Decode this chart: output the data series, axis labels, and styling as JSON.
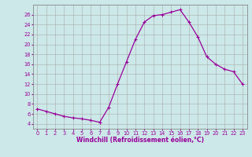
{
  "x": [
    0,
    1,
    2,
    3,
    4,
    5,
    6,
    7,
    8,
    9,
    10,
    11,
    12,
    13,
    14,
    15,
    16,
    17,
    18,
    19,
    20,
    21,
    22,
    23
  ],
  "y": [
    7,
    6.5,
    6,
    5.5,
    5.2,
    5,
    4.7,
    4.3,
    7.3,
    12,
    16.5,
    21,
    24.5,
    25.8,
    26,
    26.5,
    27,
    24.5,
    21.5,
    17.5,
    16,
    15,
    14.5,
    12
  ],
  "line_color": "#990099",
  "marker": "+",
  "bg_color": "#cce8e8",
  "grid_color": "#aaaaaa",
  "xlim": [
    -0.5,
    23.5
  ],
  "ylim": [
    3,
    28
  ],
  "yticks": [
    4,
    6,
    8,
    10,
    12,
    14,
    16,
    18,
    20,
    22,
    24,
    26
  ],
  "xtick_labels": [
    "0",
    "1",
    "2",
    "3",
    "4",
    "5",
    "6",
    "7",
    "8",
    "9",
    "10",
    "11",
    "12",
    "13",
    "14",
    "15",
    "16",
    "17",
    "18",
    "19",
    "20",
    "21",
    "22",
    "23"
  ],
  "xlabel": "Windchill (Refroidissement éolien,°C)",
  "tick_color": "#990099",
  "label_fontsize": 5.5,
  "tick_fontsize": 4.8,
  "line_width": 0.9,
  "marker_size": 2.5
}
